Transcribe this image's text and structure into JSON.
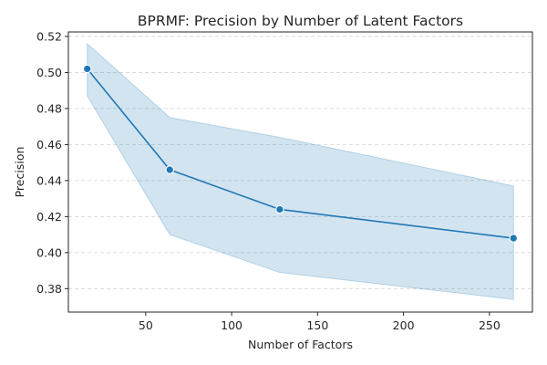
{
  "chart_data": {
    "type": "line",
    "title": "BPRMF: Precision by Number of Latent Factors",
    "xlabel": "Number of Factors",
    "ylabel": "Precision",
    "xlim": [
      5,
      275
    ],
    "ylim": [
      0.367,
      0.5225
    ],
    "x_ticks": [
      50,
      100,
      150,
      200,
      250
    ],
    "y_ticks": [
      0.38,
      0.4,
      0.42,
      0.44,
      0.46,
      0.48,
      0.5,
      0.52
    ],
    "x_tick_labels": [
      "50",
      "100",
      "150",
      "200",
      "250"
    ],
    "y_tick_labels": [
      "0.38",
      "0.40",
      "0.42",
      "0.44",
      "0.46",
      "0.48",
      "0.50",
      "0.52"
    ],
    "grid": "y-dashed",
    "series": [
      {
        "x": [
          16,
          64,
          128,
          264
        ],
        "y": [
          0.502,
          0.446,
          0.424,
          0.408
        ],
        "ci_upper": [
          0.516,
          0.475,
          0.464,
          0.437
        ],
        "ci_lower": [
          0.487,
          0.41,
          0.389,
          0.374
        ],
        "color": "#1f77b4",
        "band_color": "#1f77b4",
        "marker": "circle"
      }
    ]
  }
}
